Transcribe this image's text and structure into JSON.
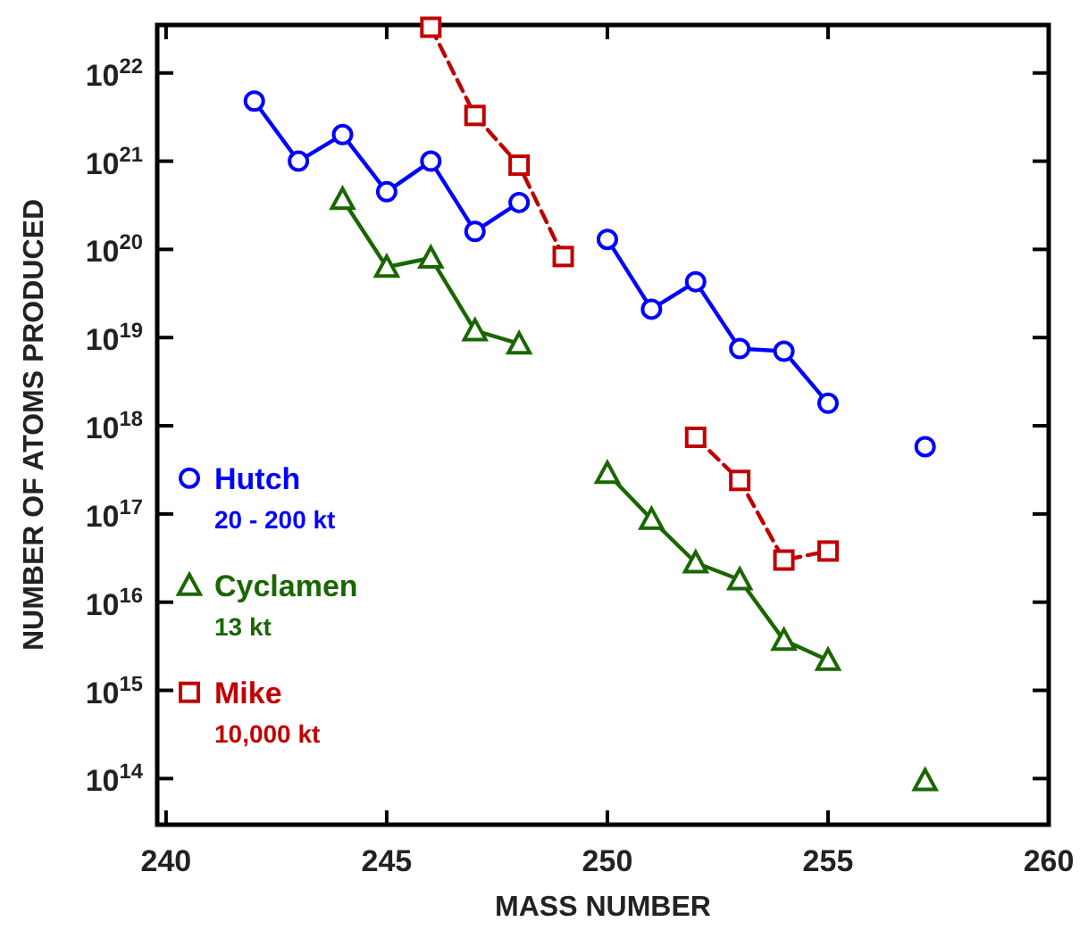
{
  "chart_data": {
    "type": "line",
    "xlabel": "MASS NUMBER",
    "ylabel": "NUMBER OF ATOMS PRODUCED",
    "log": "y",
    "xlim": [
      239.8,
      260
    ],
    "xticks": [
      240,
      245,
      250,
      255,
      260
    ],
    "ylim": [
      30000000000000.0,
      3.5e+22
    ],
    "yticks": [
      {
        "value": 100000000000000.0,
        "label": "10$^{14}$"
      },
      {
        "value": 1000000000000000.0,
        "label": "10$^{15}$"
      },
      {
        "value": 1e+16,
        "label": "10$^{16}$"
      },
      {
        "value": 1e+17,
        "label": "10$^{17}$"
      },
      {
        "value": 1e+18,
        "label": "10$^{18}$"
      },
      {
        "value": 1e+19,
        "label": "10$^{19}$"
      },
      {
        "value": 1e+20,
        "label": "10$^{20}$"
      },
      {
        "value": 1e+21,
        "label": "10$^{21}$"
      },
      {
        "value": 1e+22,
        "label": "10$^{22}$"
      }
    ],
    "grid": false,
    "legend": "left",
    "annotations": [
      "20 - 200 kt",
      "13 kt",
      "10,000 kt"
    ],
    "series": [
      {
        "name": "Hutch",
        "color": "#0000ff",
        "marker": "circle",
        "line_style": "solid",
        "x": [
          242,
          243,
          244,
          245,
          246,
          247,
          248,
          249,
          250,
          251,
          252,
          253,
          254,
          255,
          256,
          257.2
        ],
        "values": [
          4.8e+21,
          1e+21,
          2e+21,
          4.5e+20,
          1e+21,
          1.6e+20,
          3.4e+20,
          null,
          1.3e+20,
          2.1e+19,
          4.3e+19,
          7.5e+18,
          7e+18,
          1.8e+18,
          null,
          5.8e+17
        ]
      },
      {
        "name": "Cyclamen",
        "color": "#1a6600",
        "marker": "triangle",
        "line_style": "solid",
        "x": [
          244,
          245,
          246,
          247,
          248,
          249,
          250,
          251,
          252,
          253,
          254,
          255,
          256,
          257.2
        ],
        "values": [
          3.7e+20,
          6.3e+19,
          8e+19,
          1.2e+19,
          8.5e+18,
          null,
          2.9e+17,
          8.7e+16,
          2.8e+16,
          1.8e+16,
          3700000000000000.0,
          2200000000000000.0,
          null,
          95000000000000.0
        ]
      },
      {
        "name": "Mike",
        "color": "#c00000",
        "marker": "square",
        "line_style": "dashed",
        "x": [
          246,
          247,
          248,
          249,
          250,
          252,
          253,
          254,
          255
        ],
        "values": [
          3.3e+22,
          3.3e+21,
          9e+20,
          8.3e+19,
          null,
          7.4e+17,
          2.4e+17,
          3e+16,
          3.8e+16
        ]
      }
    ]
  }
}
